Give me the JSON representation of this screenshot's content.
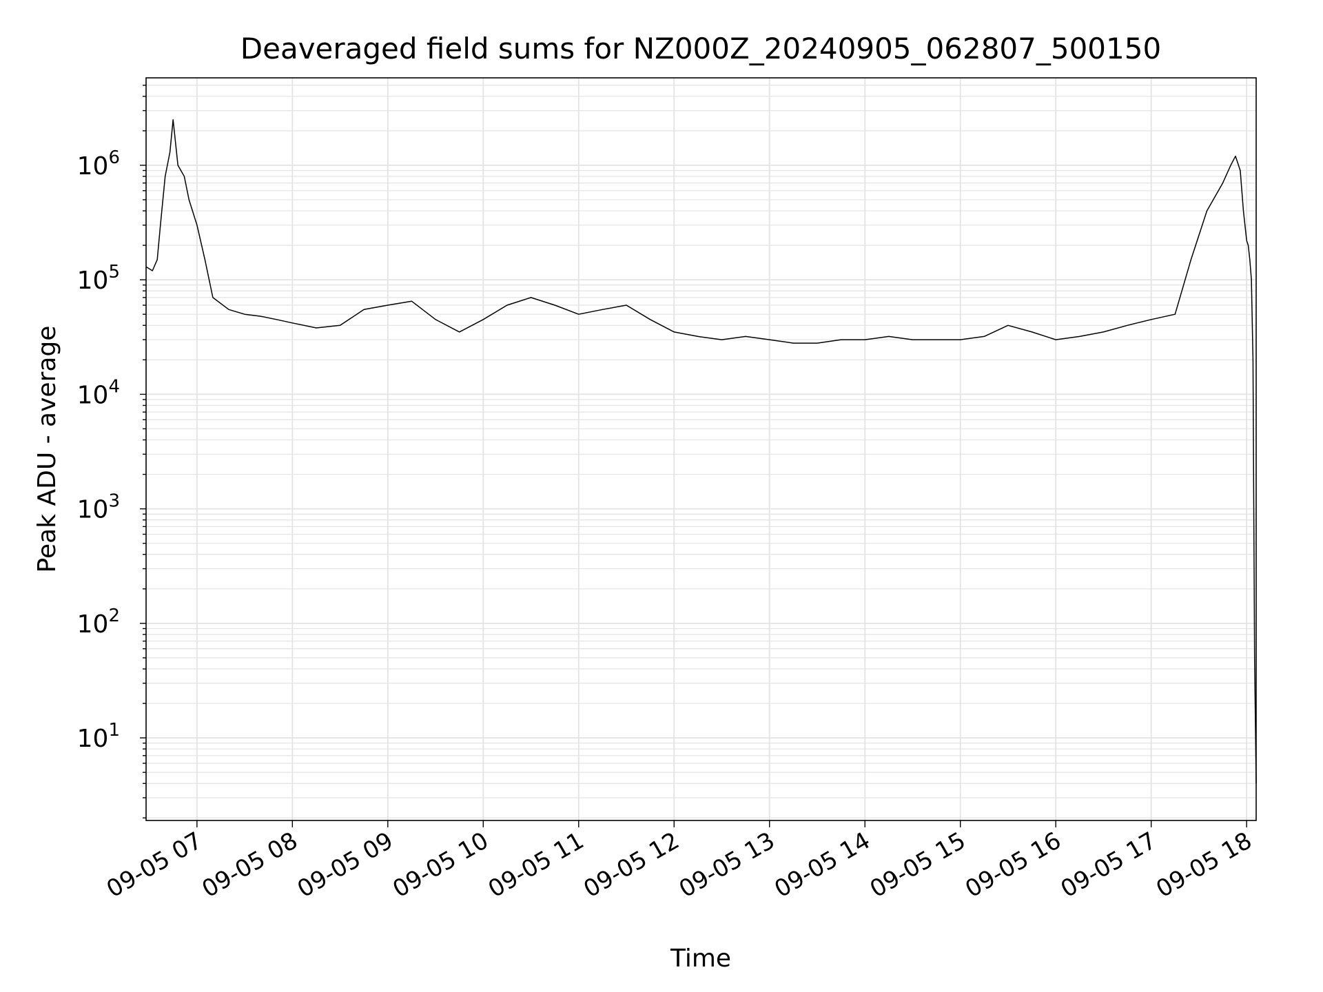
{
  "chart_data": {
    "type": "line",
    "title": "Deaveraged field sums for NZ000Z_20240905_062807_500150",
    "xlabel": "Time",
    "ylabel": "Peak ADU - average",
    "yscale": "log",
    "ylim": [
      1.9,
      5800000
    ],
    "xlim": [
      "09-05 06:28",
      "09-05 18:06"
    ],
    "grid": true,
    "line_color": "#000000",
    "grid_color": "#e3e3e3",
    "x_ticks": [
      "09-05 07",
      "09-05 08",
      "09-05 09",
      "09-05 10",
      "09-05 11",
      "09-05 12",
      "09-05 13",
      "09-05 14",
      "09-05 15",
      "09-05 16",
      "09-05 17",
      "09-05 18"
    ],
    "y_ticks": [
      {
        "value": 10,
        "base": "10",
        "exp": "1"
      },
      {
        "value": 100,
        "base": "10",
        "exp": "2"
      },
      {
        "value": 1000,
        "base": "10",
        "exp": "3"
      },
      {
        "value": 10000,
        "base": "10",
        "exp": "4"
      },
      {
        "value": 100000,
        "base": "10",
        "exp": "5"
      },
      {
        "value": 1000000,
        "base": "10",
        "exp": "6"
      }
    ],
    "series": [
      {
        "points": [
          [
            "09-05 06:28",
            130000
          ],
          [
            "09-05 06:32",
            120000
          ],
          [
            "09-05 06:35",
            150000
          ],
          [
            "09-05 06:37",
            300000
          ],
          [
            "09-05 06:40",
            800000
          ],
          [
            "09-05 06:43",
            1300000
          ],
          [
            "09-05 06:45",
            2500000
          ],
          [
            "09-05 06:48",
            1000000
          ],
          [
            "09-05 06:52",
            800000
          ],
          [
            "09-05 06:55",
            500000
          ],
          [
            "09-05 07:00",
            300000
          ],
          [
            "09-05 07:05",
            150000
          ],
          [
            "09-05 07:10",
            70000
          ],
          [
            "09-05 07:20",
            55000
          ],
          [
            "09-05 07:30",
            50000
          ],
          [
            "09-05 07:40",
            48000
          ],
          [
            "09-05 07:50",
            45000
          ],
          [
            "09-05 08:00",
            42000
          ],
          [
            "09-05 08:15",
            38000
          ],
          [
            "09-05 08:30",
            40000
          ],
          [
            "09-05 08:45",
            55000
          ],
          [
            "09-05 09:00",
            60000
          ],
          [
            "09-05 09:15",
            65000
          ],
          [
            "09-05 09:30",
            45000
          ],
          [
            "09-05 09:45",
            35000
          ],
          [
            "09-05 10:00",
            45000
          ],
          [
            "09-05 10:15",
            60000
          ],
          [
            "09-05 10:30",
            70000
          ],
          [
            "09-05 10:45",
            60000
          ],
          [
            "09-05 11:00",
            50000
          ],
          [
            "09-05 11:15",
            55000
          ],
          [
            "09-05 11:30",
            60000
          ],
          [
            "09-05 11:45",
            45000
          ],
          [
            "09-05 12:00",
            35000
          ],
          [
            "09-05 12:15",
            32000
          ],
          [
            "09-05 12:30",
            30000
          ],
          [
            "09-05 12:45",
            32000
          ],
          [
            "09-05 13:00",
            30000
          ],
          [
            "09-05 13:15",
            28000
          ],
          [
            "09-05 13:30",
            28000
          ],
          [
            "09-05 13:45",
            30000
          ],
          [
            "09-05 14:00",
            30000
          ],
          [
            "09-05 14:15",
            32000
          ],
          [
            "09-05 14:30",
            30000
          ],
          [
            "09-05 14:45",
            30000
          ],
          [
            "09-05 15:00",
            30000
          ],
          [
            "09-05 15:15",
            32000
          ],
          [
            "09-05 15:30",
            40000
          ],
          [
            "09-05 15:45",
            35000
          ],
          [
            "09-05 16:00",
            30000
          ],
          [
            "09-05 16:15",
            32000
          ],
          [
            "09-05 16:30",
            35000
          ],
          [
            "09-05 16:45",
            40000
          ],
          [
            "09-05 17:00",
            45000
          ],
          [
            "09-05 17:15",
            50000
          ],
          [
            "09-05 17:25",
            150000
          ],
          [
            "09-05 17:35",
            400000
          ],
          [
            "09-05 17:45",
            700000
          ],
          [
            "09-05 17:50",
            1000000
          ],
          [
            "09-05 17:53",
            1200000
          ],
          [
            "09-05 17:56",
            900000
          ],
          [
            "09-05 17:58",
            400000
          ],
          [
            "09-05 18:00",
            220000
          ],
          [
            "09-05 18:01",
            200000
          ],
          [
            "09-05 18:02",
            150000
          ],
          [
            "09-05 18:03",
            100000
          ],
          [
            "09-05 18:04",
            20000
          ],
          [
            "09-05 18:05",
            50
          ],
          [
            "09-05 18:06",
            4
          ]
        ]
      }
    ]
  }
}
